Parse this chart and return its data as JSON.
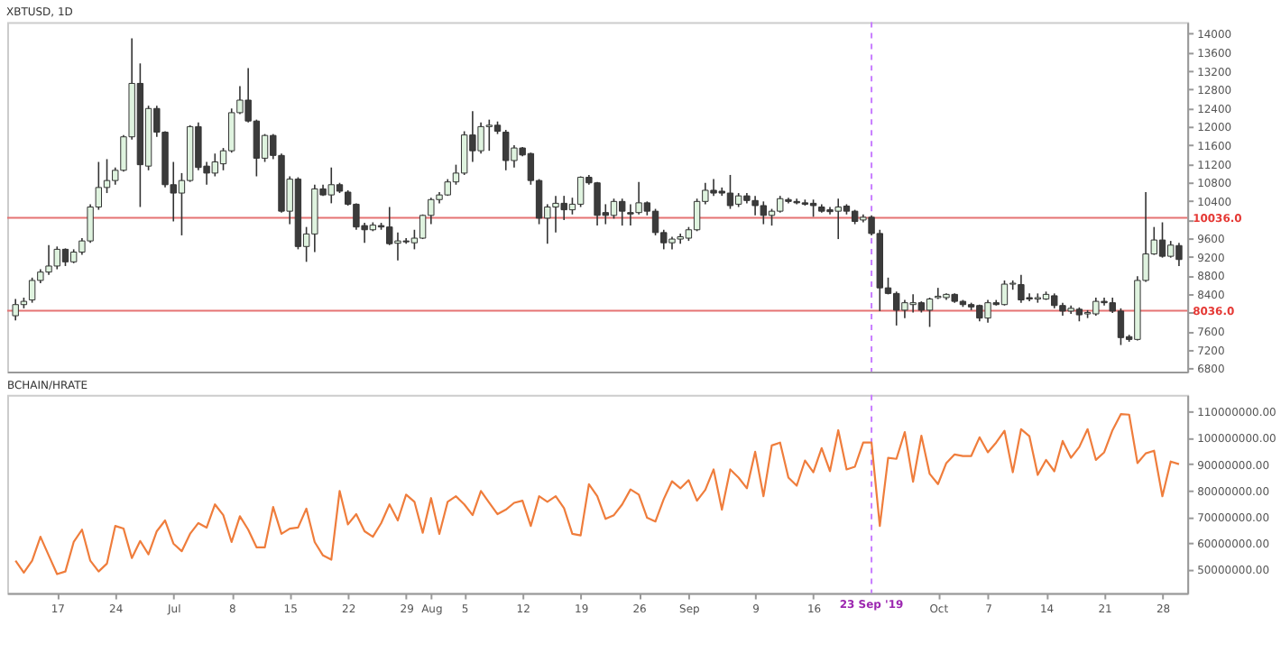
{
  "chart_data": [
    {
      "type": "candlestick",
      "title": "XBTUSD, 1D",
      "x": [
        "2019-06-12",
        "2019-06-13",
        "2019-06-14",
        "2019-06-15",
        "2019-06-16",
        "2019-06-17",
        "2019-06-18",
        "2019-06-19",
        "2019-06-20",
        "2019-06-21",
        "2019-06-22",
        "2019-06-23",
        "2019-06-24",
        "2019-06-25",
        "2019-06-26",
        "2019-06-27",
        "2019-06-28",
        "2019-06-29",
        "2019-06-30",
        "2019-07-01",
        "2019-07-02",
        "2019-07-03",
        "2019-07-04",
        "2019-07-05",
        "2019-07-06",
        "2019-07-07",
        "2019-07-08",
        "2019-07-09",
        "2019-07-10",
        "2019-07-11",
        "2019-07-12",
        "2019-07-13",
        "2019-07-14",
        "2019-07-15",
        "2019-07-16",
        "2019-07-17",
        "2019-07-18",
        "2019-07-19",
        "2019-07-20",
        "2019-07-21",
        "2019-07-22",
        "2019-07-23",
        "2019-07-24",
        "2019-07-25",
        "2019-07-26",
        "2019-07-27",
        "2019-07-28",
        "2019-07-29",
        "2019-07-30",
        "2019-07-31",
        "2019-08-01",
        "2019-08-02",
        "2019-08-03",
        "2019-08-04",
        "2019-08-05",
        "2019-08-06",
        "2019-08-07",
        "2019-08-08",
        "2019-08-09",
        "2019-08-10",
        "2019-08-11",
        "2019-08-12",
        "2019-08-13",
        "2019-08-14",
        "2019-08-15",
        "2019-08-16",
        "2019-08-17",
        "2019-08-18",
        "2019-08-19",
        "2019-08-20",
        "2019-08-21",
        "2019-08-22",
        "2019-08-23",
        "2019-08-24",
        "2019-08-25",
        "2019-08-26",
        "2019-08-27",
        "2019-08-28",
        "2019-08-29",
        "2019-08-30",
        "2019-08-31",
        "2019-09-01",
        "2019-09-02",
        "2019-09-03",
        "2019-09-04",
        "2019-09-05",
        "2019-09-06",
        "2019-09-07",
        "2019-09-08",
        "2019-09-09",
        "2019-09-10",
        "2019-09-11",
        "2019-09-12",
        "2019-09-13",
        "2019-09-14",
        "2019-09-15",
        "2019-09-16",
        "2019-09-17",
        "2019-09-18",
        "2019-09-19",
        "2019-09-20",
        "2019-09-21",
        "2019-09-22",
        "2019-09-23",
        "2019-09-24",
        "2019-09-25",
        "2019-09-26",
        "2019-09-27",
        "2019-09-28",
        "2019-09-29",
        "2019-09-30",
        "2019-10-01",
        "2019-10-02",
        "2019-10-03",
        "2019-10-04",
        "2019-10-05",
        "2019-10-06",
        "2019-10-07",
        "2019-10-08",
        "2019-10-09",
        "2019-10-10",
        "2019-10-11",
        "2019-10-12",
        "2019-10-13",
        "2019-10-14",
        "2019-10-15",
        "2019-10-16",
        "2019-10-17",
        "2019-10-18",
        "2019-10-19",
        "2019-10-20",
        "2019-10-21",
        "2019-10-22",
        "2019-10-23",
        "2019-10-24",
        "2019-10-25",
        "2019-10-26",
        "2019-10-27",
        "2019-10-28",
        "2019-10-29",
        "2019-10-30"
      ],
      "ohlc": [
        [
          7930,
          8290,
          7830,
          8170
        ],
        [
          8170,
          8320,
          8090,
          8240
        ],
        [
          8270,
          8750,
          8210,
          8690
        ],
        [
          8690,
          8930,
          8630,
          8870
        ],
        [
          8870,
          9450,
          8810,
          9000
        ],
        [
          9000,
          9420,
          8930,
          9360
        ],
        [
          9360,
          9380,
          9000,
          9090
        ],
        [
          9090,
          9360,
          9060,
          9300
        ],
        [
          9300,
          9600,
          9240,
          9540
        ],
        [
          9540,
          10330,
          9500,
          10270
        ],
        [
          10270,
          11240,
          10210,
          10690
        ],
        [
          10690,
          11300,
          10570,
          10840
        ],
        [
          10840,
          11120,
          10750,
          11060
        ],
        [
          11060,
          11820,
          11030,
          11780
        ],
        [
          11780,
          13900,
          11720,
          12930
        ],
        [
          12930,
          13360,
          10270,
          11180
        ],
        [
          11150,
          12450,
          11060,
          12390
        ],
        [
          12390,
          12450,
          11780,
          11880
        ],
        [
          11880,
          11900,
          10690,
          10750
        ],
        [
          10750,
          11240,
          9960,
          10570
        ],
        [
          10570,
          11000,
          9660,
          10840
        ],
        [
          10840,
          12030,
          10810,
          12000
        ],
        [
          12000,
          12090,
          11060,
          11120
        ],
        [
          11150,
          11240,
          10750,
          11000
        ],
        [
          11000,
          11420,
          10930,
          11240
        ],
        [
          11200,
          11540,
          11060,
          11480
        ],
        [
          11480,
          12390,
          11440,
          12300
        ],
        [
          12300,
          12870,
          12270,
          12570
        ],
        [
          12570,
          13260,
          12090,
          12120
        ],
        [
          12120,
          12150,
          10930,
          11320
        ],
        [
          11320,
          11840,
          11240,
          11810
        ],
        [
          11810,
          11840,
          11300,
          11380
        ],
        [
          11380,
          11420,
          10150,
          10180
        ],
        [
          10180,
          10930,
          9900,
          10870
        ],
        [
          10870,
          10910,
          9360,
          9420
        ],
        [
          9420,
          9840,
          9090,
          9690
        ],
        [
          9690,
          10750,
          9300,
          10660
        ],
        [
          10660,
          10750,
          10510,
          10530
        ],
        [
          10530,
          11120,
          10350,
          10750
        ],
        [
          10750,
          10790,
          10570,
          10610
        ],
        [
          10590,
          10630,
          10300,
          10330
        ],
        [
          10330,
          10350,
          9780,
          9840
        ],
        [
          9870,
          9930,
          9500,
          9780
        ],
        [
          9780,
          9940,
          9750,
          9880
        ],
        [
          9870,
          9930,
          9780,
          9840
        ],
        [
          9840,
          10270,
          9450,
          9480
        ],
        [
          9490,
          9720,
          9120,
          9540
        ],
        [
          9540,
          9600,
          9480,
          9520
        ],
        [
          9500,
          9780,
          9360,
          9600
        ],
        [
          9600,
          10110,
          9580,
          10090
        ],
        [
          10090,
          10470,
          9900,
          10430
        ],
        [
          10430,
          10590,
          10350,
          10530
        ],
        [
          10530,
          10870,
          10510,
          10810
        ],
        [
          10810,
          11180,
          10750,
          11000
        ],
        [
          11000,
          11900,
          10960,
          11820
        ],
        [
          11820,
          12330,
          11240,
          11480
        ],
        [
          11480,
          12090,
          11420,
          12000
        ],
        [
          12000,
          12150,
          11480,
          12030
        ],
        [
          12030,
          12110,
          11840,
          11900
        ],
        [
          11880,
          11930,
          11060,
          11270
        ],
        [
          11270,
          11600,
          11120,
          11540
        ],
        [
          11540,
          11560,
          11360,
          11390
        ],
        [
          11420,
          11440,
          10750,
          10840
        ],
        [
          10840,
          10870,
          9900,
          10030
        ],
        [
          10030,
          10330,
          9480,
          10270
        ],
        [
          10270,
          10510,
          9720,
          10350
        ],
        [
          10350,
          10510,
          9990,
          10210
        ],
        [
          10210,
          10470,
          10110,
          10330
        ],
        [
          10330,
          10930,
          10270,
          10910
        ],
        [
          10910,
          10960,
          10750,
          10790
        ],
        [
          10790,
          10810,
          9870,
          10090
        ],
        [
          10150,
          10330,
          9900,
          10090
        ],
        [
          10090,
          10450,
          10020,
          10390
        ],
        [
          10390,
          10450,
          9870,
          10180
        ],
        [
          10150,
          10330,
          9870,
          10120
        ],
        [
          10150,
          10810,
          10110,
          10360
        ],
        [
          10360,
          10390,
          10090,
          10180
        ],
        [
          10180,
          10230,
          9660,
          9720
        ],
        [
          9720,
          9780,
          9360,
          9500
        ],
        [
          9500,
          9630,
          9360,
          9580
        ],
        [
          9580,
          9700,
          9480,
          9630
        ],
        [
          9600,
          9840,
          9540,
          9780
        ],
        [
          9780,
          10450,
          9750,
          10390
        ],
        [
          10390,
          10790,
          10330,
          10630
        ],
        [
          10630,
          10870,
          10510,
          10570
        ],
        [
          10610,
          10690,
          10510,
          10570
        ],
        [
          10570,
          10960,
          10230,
          10300
        ],
        [
          10330,
          10570,
          10270,
          10510
        ],
        [
          10510,
          10570,
          10350,
          10410
        ],
        [
          10410,
          10510,
          10090,
          10300
        ],
        [
          10300,
          10390,
          9900,
          10090
        ],
        [
          10090,
          10230,
          9870,
          10180
        ],
        [
          10180,
          10510,
          10150,
          10450
        ],
        [
          10430,
          10470,
          10350,
          10390
        ],
        [
          10390,
          10450,
          10330,
          10360
        ],
        [
          10360,
          10430,
          10300,
          10330
        ],
        [
          10350,
          10430,
          10060,
          10300
        ],
        [
          10270,
          10330,
          10150,
          10180
        ],
        [
          10210,
          10270,
          10110,
          10170
        ],
        [
          10180,
          10450,
          9580,
          10270
        ],
        [
          10290,
          10330,
          10110,
          10180
        ],
        [
          10180,
          10210,
          9900,
          9960
        ],
        [
          9990,
          10110,
          9940,
          10050
        ],
        [
          10050,
          10090,
          9660,
          9700
        ],
        [
          9700,
          9780,
          8030,
          8530
        ],
        [
          8530,
          8750,
          8390,
          8410
        ],
        [
          8410,
          8450,
          7720,
          8050
        ],
        [
          8050,
          8270,
          7880,
          8210
        ],
        [
          8170,
          8390,
          8000,
          8210
        ],
        [
          8210,
          8240,
          8000,
          8050
        ],
        [
          8050,
          8320,
          7690,
          8290
        ],
        [
          8320,
          8530,
          8290,
          8350
        ],
        [
          8320,
          8410,
          8270,
          8390
        ],
        [
          8390,
          8410,
          8210,
          8240
        ],
        [
          8240,
          8270,
          8120,
          8170
        ],
        [
          8170,
          8210,
          8050,
          8120
        ],
        [
          8150,
          8170,
          7810,
          7880
        ],
        [
          7880,
          8270,
          7780,
          8210
        ],
        [
          8210,
          8270,
          8150,
          8170
        ],
        [
          8170,
          8690,
          8150,
          8610
        ],
        [
          8610,
          8690,
          8490,
          8630
        ],
        [
          8600,
          8810,
          8210,
          8270
        ],
        [
          8320,
          8410,
          8240,
          8290
        ],
        [
          8290,
          8410,
          8210,
          8320
        ],
        [
          8290,
          8450,
          8270,
          8390
        ],
        [
          8360,
          8410,
          8090,
          8150
        ],
        [
          8150,
          8210,
          7930,
          8030
        ],
        [
          8030,
          8150,
          7970,
          8090
        ],
        [
          8070,
          8110,
          7810,
          7950
        ],
        [
          7970,
          8050,
          7880,
          8000
        ],
        [
          7970,
          8320,
          7930,
          8240
        ],
        [
          8240,
          8320,
          8150,
          8210
        ],
        [
          8210,
          8320,
          7990,
          8030
        ],
        [
          8030,
          8090,
          7300,
          7460
        ],
        [
          7480,
          7520,
          7370,
          7420
        ],
        [
          7420,
          8780,
          7400,
          8690
        ],
        [
          8690,
          10590,
          8660,
          9260
        ],
        [
          9260,
          9840,
          9240,
          9560
        ],
        [
          9560,
          9940,
          9180,
          9210
        ],
        [
          9210,
          9540,
          9180,
          9450
        ],
        [
          9440,
          9500,
          9000,
          9140
        ]
      ],
      "colors": [
        "#dff3df",
        "#dff3df",
        "#dff3df",
        "#dff3df",
        "#dff3df",
        "#dff3df",
        "#3b3b3b",
        "#dff3df",
        "#dff3df",
        "#dff3df",
        "#dff3df",
        "#dff3df",
        "#dff3df",
        "#dff3df",
        "#dff3df",
        "#3b3b3b",
        "#dff3df",
        "#3b3b3b",
        "#3b3b3b",
        "#3b3b3b",
        "#dff3df",
        "#dff3df",
        "#3b3b3b",
        "#3b3b3b",
        "#dff3df",
        "#dff3df",
        "#dff3df",
        "#dff3df",
        "#3b3b3b",
        "#3b3b3b",
        "#dff3df",
        "#3b3b3b",
        "#3b3b3b",
        "#dff3df",
        "#3b3b3b",
        "#dff3df",
        "#dff3df",
        "#3b3b3b",
        "#dff3df",
        "#3b3b3b",
        "#3b3b3b",
        "#3b3b3b",
        "#3b3b3b",
        "#dff3df",
        "#3b3b3b",
        "#3b3b3b",
        "#dff3df",
        "#3b3b3b",
        "#dff3df",
        "#dff3df",
        "#dff3df",
        "#dff3df",
        "#dff3df",
        "#dff3df",
        "#dff3df",
        "#3b3b3b",
        "#dff3df",
        "#dff3df",
        "#3b3b3b",
        "#3b3b3b",
        "#dff3df",
        "#3b3b3b",
        "#3b3b3b",
        "#3b3b3b",
        "#dff3df",
        "#dff3df",
        "#3b3b3b",
        "#dff3df",
        "#dff3df",
        "#3b3b3b",
        "#3b3b3b",
        "#3b3b3b",
        "#dff3df",
        "#3b3b3b",
        "#3b3b3b",
        "#dff3df",
        "#3b3b3b",
        "#3b3b3b",
        "#3b3b3b",
        "#dff3df",
        "#dff3df",
        "#dff3df",
        "#dff3df",
        "#dff3df",
        "#3b3b3b",
        "#3b3b3b",
        "#3b3b3b",
        "#dff3df",
        "#3b3b3b",
        "#3b3b3b",
        "#3b3b3b",
        "#dff3df",
        "#dff3df",
        "#3b3b3b",
        "#3b3b3b",
        "#3b3b3b",
        "#3b3b3b",
        "#3b3b3b",
        "#3b3b3b",
        "#dff3df",
        "#3b3b3b",
        "#3b3b3b",
        "#dff3df",
        "#3b3b3b",
        "#3b3b3b",
        "#3b3b3b",
        "#3b3b3b",
        "#dff3df",
        "#dff3df",
        "#3b3b3b",
        "#dff3df",
        "#dff3df",
        "#dff3df",
        "#3b3b3b",
        "#3b3b3b",
        "#3b3b3b",
        "#3b3b3b",
        "#dff3df",
        "#3b3b3b",
        "#dff3df",
        "#dff3df",
        "#3b3b3b",
        "#3b3b3b",
        "#dff3df",
        "#dff3df",
        "#3b3b3b",
        "#3b3b3b",
        "#dff3df",
        "#3b3b3b",
        "#dff3df",
        "#dff3df",
        "#3b3b3b",
        "#3b3b3b",
        "#3b3b3b",
        "#3b3b3b",
        "#dff3df",
        "#dff3df",
        "#dff3df",
        "#3b3b3b",
        "#dff3df",
        "#3b3b3b"
      ],
      "xlim": [
        "2019-06-11",
        "2019-10-31"
      ],
      "ylim": [
        6730,
        14250
      ],
      "yticks": [
        6800,
        7200,
        7600,
        {
          "value": 8000,
          "label": null
        },
        8400,
        8800,
        9200,
        9600,
        {
          "value": 10000,
          "label": null
        },
        10400,
        10800,
        11200,
        11600,
        12000,
        12400,
        12800,
        13200,
        13600,
        14000
      ],
      "tick_labels": "y",
      "ref_lines": [
        {
          "axis": "y",
          "value": 10036,
          "label": "10036.0",
          "color": "#e57373",
          "line_style": "solid"
        },
        {
          "axis": "y",
          "value": 8036,
          "label": "8036.0",
          "color": "#e57373",
          "line_style": "solid"
        },
        {
          "axis": "x",
          "value": "2019-09-23",
          "label": null,
          "color": "#c77dff",
          "line_style": "dashed"
        }
      ]
    },
    {
      "type": "line",
      "title": "BCHAIN/HRATE",
      "x": [
        "2019-06-12",
        "2019-06-13",
        "2019-06-14",
        "2019-06-15",
        "2019-06-16",
        "2019-06-17",
        "2019-06-18",
        "2019-06-19",
        "2019-06-20",
        "2019-06-21",
        "2019-06-22",
        "2019-06-23",
        "2019-06-24",
        "2019-06-25",
        "2019-06-26",
        "2019-06-27",
        "2019-06-28",
        "2019-06-29",
        "2019-06-30",
        "2019-07-01",
        "2019-07-02",
        "2019-07-03",
        "2019-07-04",
        "2019-07-05",
        "2019-07-06",
        "2019-07-07",
        "2019-07-08",
        "2019-07-09",
        "2019-07-10",
        "2019-07-11",
        "2019-07-12",
        "2019-07-13",
        "2019-07-14",
        "2019-07-15",
        "2019-07-16",
        "2019-07-17",
        "2019-07-18",
        "2019-07-19",
        "2019-07-20",
        "2019-07-21",
        "2019-07-22",
        "2019-07-23",
        "2019-07-24",
        "2019-07-25",
        "2019-07-26",
        "2019-07-27",
        "2019-07-28",
        "2019-07-29",
        "2019-07-30",
        "2019-07-31",
        "2019-08-01",
        "2019-08-02",
        "2019-08-03",
        "2019-08-04",
        "2019-08-05",
        "2019-08-06",
        "2019-08-07",
        "2019-08-08",
        "2019-08-09",
        "2019-08-10",
        "2019-08-11",
        "2019-08-12",
        "2019-08-13",
        "2019-08-14",
        "2019-08-15",
        "2019-08-16",
        "2019-08-17",
        "2019-08-18",
        "2019-08-19",
        "2019-08-20",
        "2019-08-21",
        "2019-08-22",
        "2019-08-23",
        "2019-08-24",
        "2019-08-25",
        "2019-08-26",
        "2019-08-27",
        "2019-08-28",
        "2019-08-29",
        "2019-08-30",
        "2019-08-31",
        "2019-09-01",
        "2019-09-02",
        "2019-09-03",
        "2019-09-04",
        "2019-09-05",
        "2019-09-06",
        "2019-09-07",
        "2019-09-08",
        "2019-09-09",
        "2019-09-10",
        "2019-09-11",
        "2019-09-12",
        "2019-09-13",
        "2019-09-14",
        "2019-09-15",
        "2019-09-16",
        "2019-09-17",
        "2019-09-18",
        "2019-09-19",
        "2019-09-20",
        "2019-09-21",
        "2019-09-22",
        "2019-09-23",
        "2019-09-24",
        "2019-09-25",
        "2019-09-26",
        "2019-09-27",
        "2019-09-28",
        "2019-09-29",
        "2019-09-30",
        "2019-10-01",
        "2019-10-02",
        "2019-10-03",
        "2019-10-04",
        "2019-10-05",
        "2019-10-06",
        "2019-10-07",
        "2019-10-08",
        "2019-10-09",
        "2019-10-10",
        "2019-10-11",
        "2019-10-12",
        "2019-10-13",
        "2019-10-14",
        "2019-10-15",
        "2019-10-16",
        "2019-10-17",
        "2019-10-18",
        "2019-10-19",
        "2019-10-20",
        "2019-10-21",
        "2019-10-22",
        "2019-10-23",
        "2019-10-24",
        "2019-10-25",
        "2019-10-26",
        "2019-10-27",
        "2019-10-28",
        "2019-10-29",
        "2019-10-30"
      ],
      "series": [
        {
          "color": "#ef7d3c",
          "values": [
            53300000,
            48800000,
            53300000,
            62400000,
            55300000,
            48200000,
            49200000,
            60400000,
            65100000,
            53300000,
            49200000,
            52200000,
            66500000,
            65500000,
            54300000,
            60800000,
            55700000,
            64500000,
            68600000,
            59800000,
            56900000,
            63500000,
            67600000,
            65900000,
            74700000,
            70600000,
            60400000,
            70200000,
            65100000,
            58400000,
            58400000,
            73700000,
            63500000,
            65500000,
            65900000,
            73100000,
            60400000,
            55300000,
            53700000,
            79800000,
            67100000,
            71000000,
            64500000,
            62400000,
            67600000,
            74700000,
            68600000,
            78400000,
            75700000,
            63900000,
            77100000,
            63500000,
            75700000,
            77800000,
            74700000,
            70600000,
            79800000,
            75300000,
            71000000,
            72700000,
            75300000,
            76100000,
            66500000,
            77800000,
            75700000,
            77800000,
            73300000,
            63500000,
            62900000,
            82400000,
            77800000,
            69200000,
            70600000,
            74700000,
            80400000,
            78400000,
            69600000,
            68200000,
            76700000,
            83500000,
            80800000,
            83900000,
            76100000,
            80200000,
            88000000,
            72700000,
            88000000,
            84900000,
            80800000,
            94700000,
            77800000,
            97100000,
            98200000,
            84900000,
            81800000,
            91400000,
            86900000,
            96100000,
            87300000,
            102900000,
            88000000,
            89000000,
            98200000,
            98200000,
            66500000,
            92400000,
            92000000,
            102200000,
            83300000,
            100800000,
            86300000,
            82400000,
            90400000,
            93700000,
            93100000,
            93100000,
            100200000,
            94500000,
            98200000,
            102700000,
            86900000,
            103300000,
            100600000,
            85900000,
            91600000,
            87300000,
            98800000,
            92400000,
            96500000,
            103300000,
            91600000,
            94500000,
            102900000,
            109000000,
            108800000,
            90400000,
            94100000,
            95100000,
            77800000,
            91000000,
            90000000
          ]
        }
      ],
      "xlim": [
        "2019-06-11",
        "2019-10-31"
      ],
      "xticks": [
        {
          "value": "2019-06-17",
          "label": "17"
        },
        {
          "value": "2019-06-24",
          "label": "24"
        },
        {
          "value": "2019-07-01",
          "label": "Jul"
        },
        {
          "value": "2019-07-08",
          "label": "8"
        },
        {
          "value": "2019-07-15",
          "label": "15"
        },
        {
          "value": "2019-07-22",
          "label": "22"
        },
        {
          "value": "2019-07-29",
          "label": "29"
        },
        {
          "value": "2019-08-01",
          "label": "Aug"
        },
        {
          "value": "2019-08-05",
          "label": "5"
        },
        {
          "value": "2019-08-12",
          "label": "12"
        },
        {
          "value": "2019-08-19",
          "label": "19"
        },
        {
          "value": "2019-08-26",
          "label": "26"
        },
        {
          "value": "2019-09-01",
          "label": "Sep"
        },
        {
          "value": "2019-09-09",
          "label": "9"
        },
        {
          "value": "2019-09-16",
          "label": "16"
        },
        {
          "value": "2019-10-01",
          "label": "Oct"
        },
        {
          "value": "2019-10-07",
          "label": "7"
        },
        {
          "value": "2019-10-14",
          "label": "14"
        },
        {
          "value": "2019-10-21",
          "label": "21"
        },
        {
          "value": "2019-10-28",
          "label": "28"
        }
      ],
      "ylim": [
        41000000,
        116300000
      ],
      "yticks": [
        {
          "value": 50000000,
          "label": "50000000.00"
        },
        {
          "value": 60000000,
          "label": "60000000.00"
        },
        {
          "value": 70000000,
          "label": "70000000.00"
        },
        {
          "value": 80000000,
          "label": "80000000.00"
        },
        {
          "value": 90000000,
          "label": "90000000.00"
        },
        {
          "value": 100000000,
          "label": "100000000.00"
        },
        {
          "value": 110000000,
          "label": "110000000.00"
        }
      ],
      "ref_lines": [
        {
          "axis": "x",
          "value": "2019-09-23",
          "label": "23 Sep '19",
          "color": "#c77dff",
          "line_style": "dashed"
        }
      ]
    }
  ]
}
